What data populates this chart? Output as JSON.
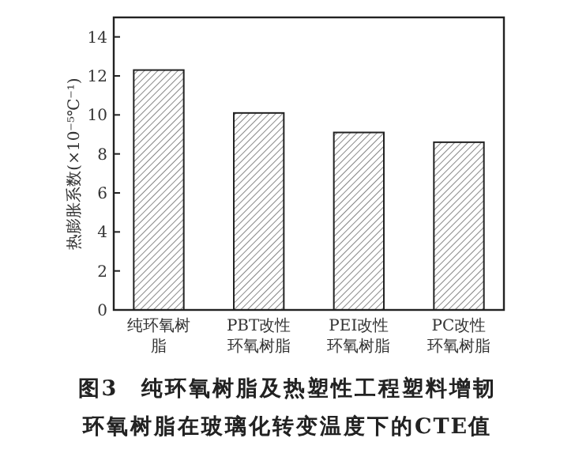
{
  "chart_data": {
    "type": "bar",
    "title": "图3　纯环氧树脂及热塑性工程塑料增韧环氧树脂在玻璃化转变温度下的CTE值",
    "ylabel": "热膨胀系数(×10⁻⁵℃⁻¹)",
    "categories": [
      "纯环氧树脂",
      "PBT改性环氧树脂",
      "PEI改性环氧树脂",
      "PC改性环氧树脂"
    ],
    "values": [
      12.3,
      10.1,
      9.1,
      8.6
    ],
    "color": "#222222",
    "ylim": [
      0,
      15
    ],
    "yticks": [
      0,
      2,
      4,
      6,
      8,
      10,
      12,
      14
    ],
    "grid": false
  }
}
